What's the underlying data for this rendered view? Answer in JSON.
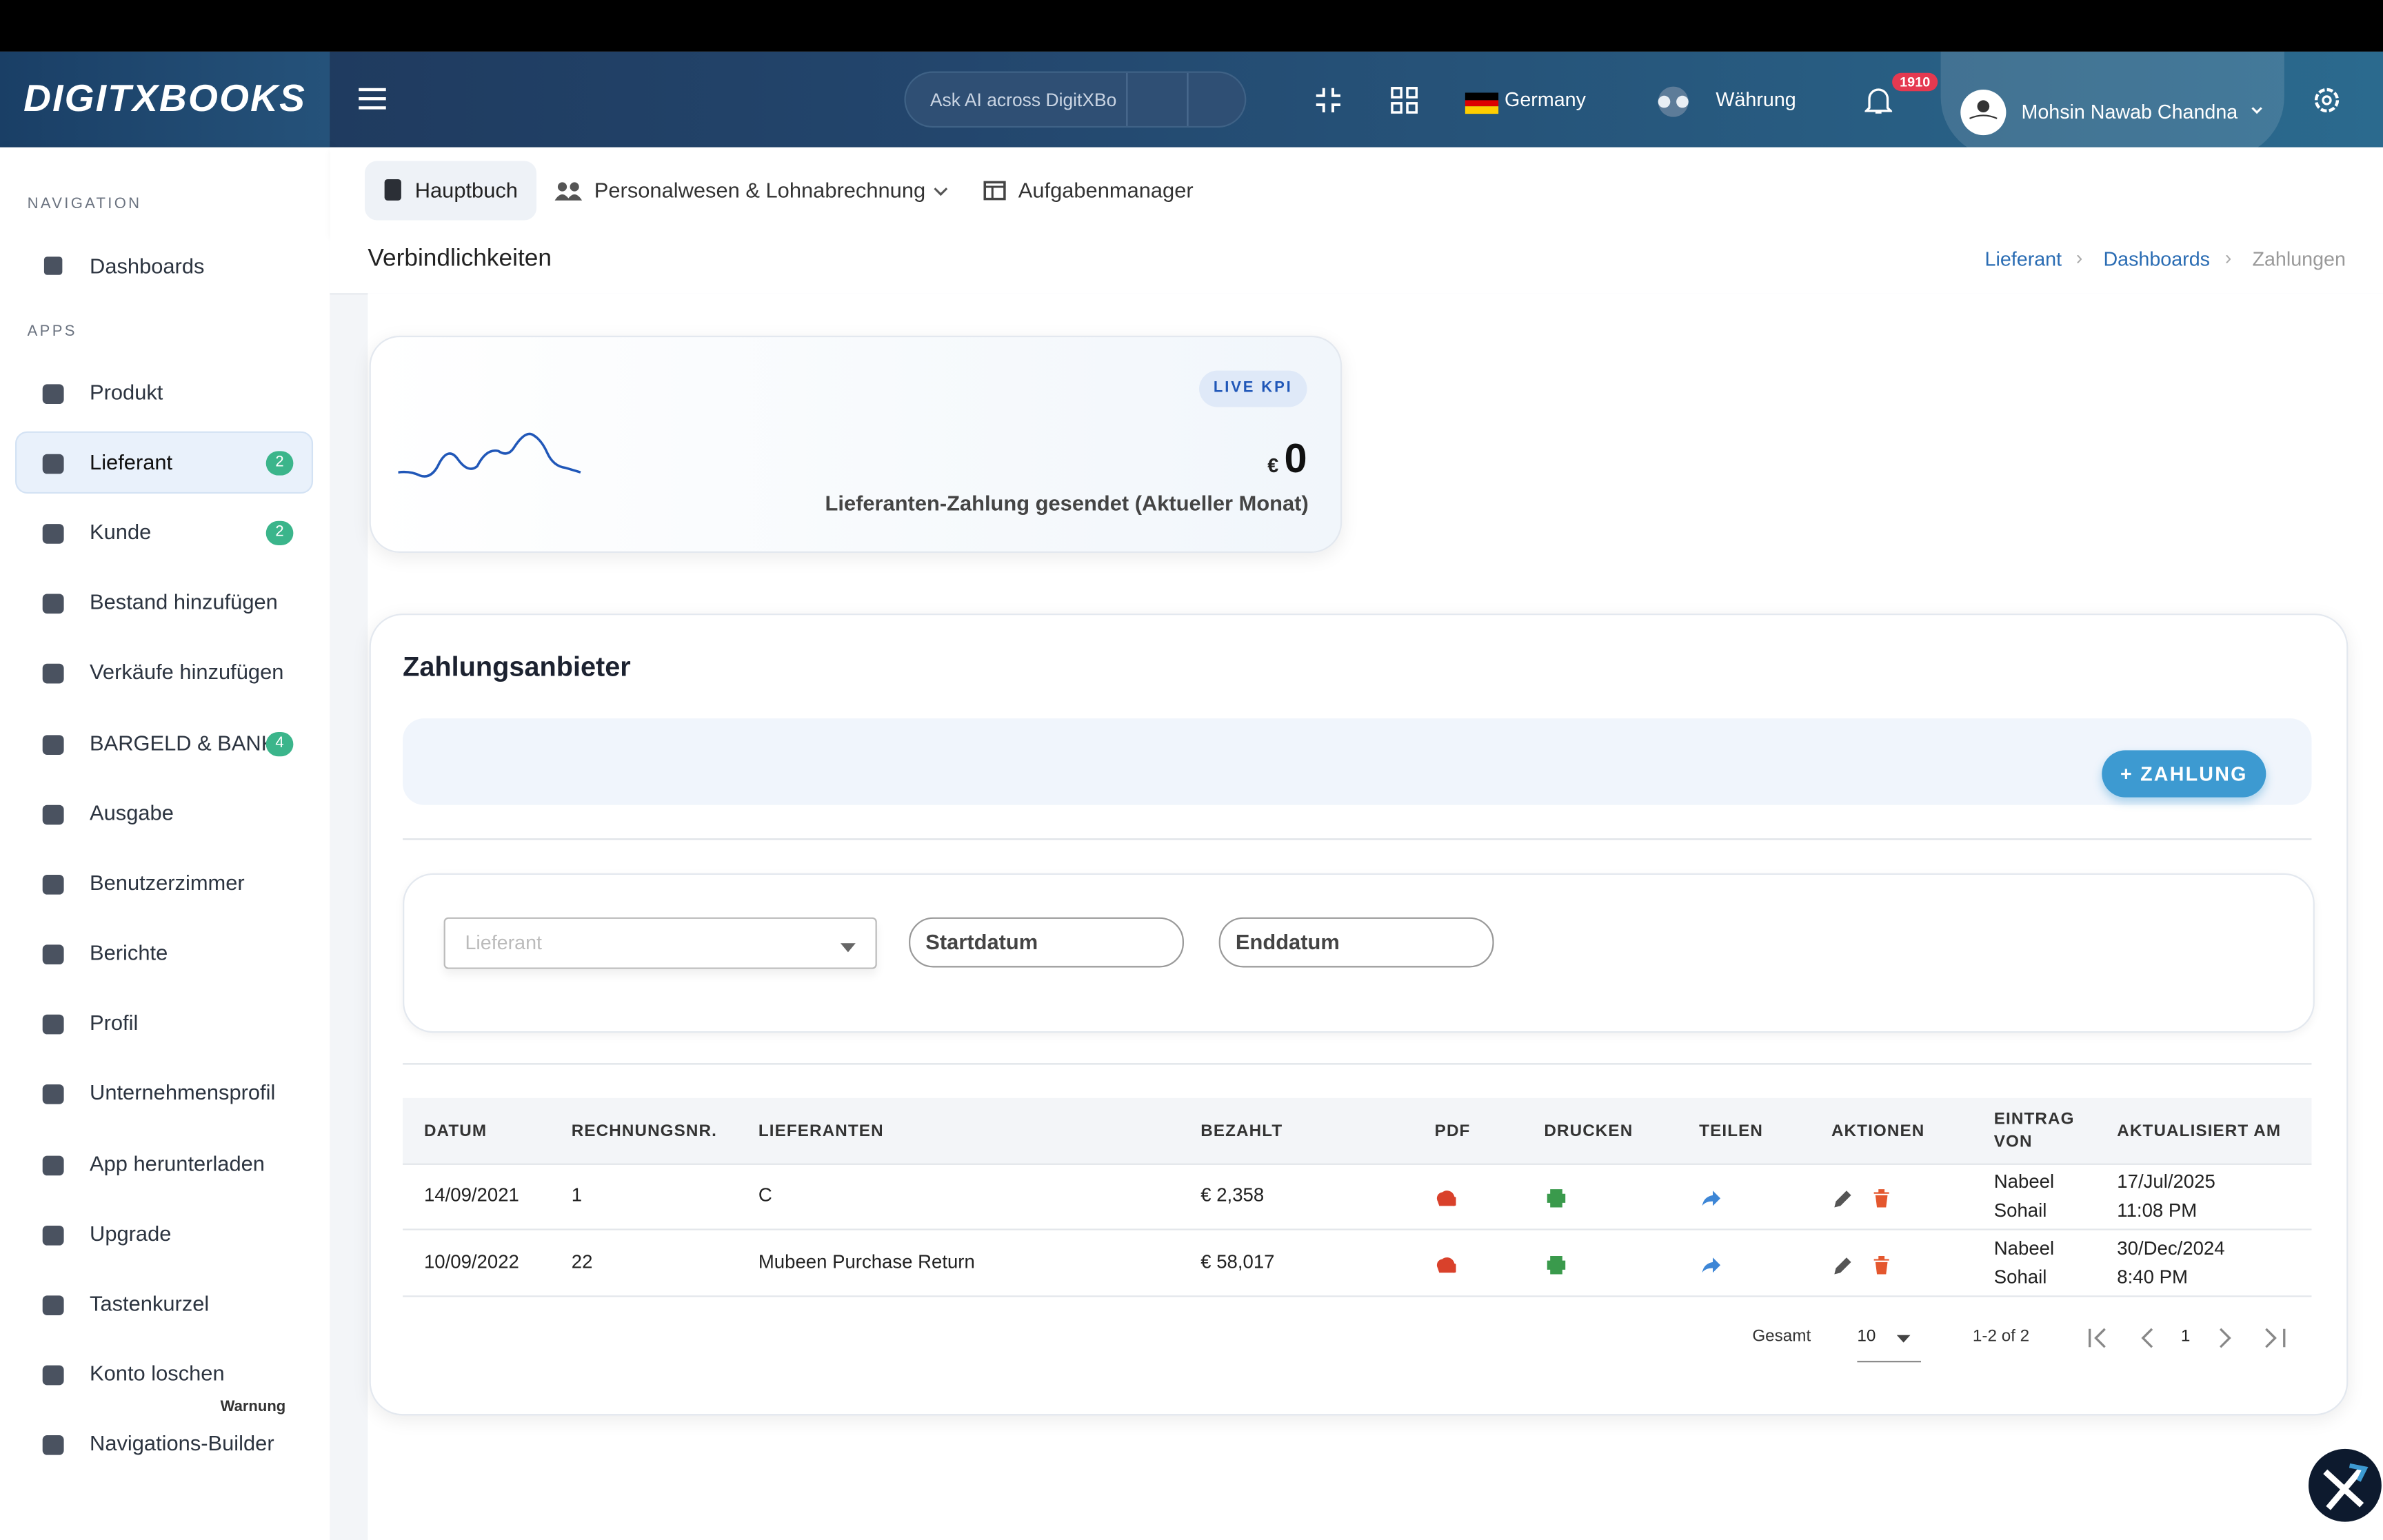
{
  "header": {
    "logo": "DIGITXBOOKS",
    "search_placeholder": "Ask AI across DigitXBo",
    "country": "Germany",
    "currency": "Währung",
    "notifications": "1910",
    "user": "Mohsin Nawab Chandna"
  },
  "sidebar": {
    "nav_heading": "NAVIGATION",
    "nav_items": [
      {
        "label": "Dashboards"
      }
    ],
    "apps_heading": "APPS",
    "apps_items": [
      {
        "label": "Produkt"
      },
      {
        "label": "Lieferant",
        "badge": "2"
      },
      {
        "label": "Kunde",
        "badge": "2"
      },
      {
        "label": "Bestand hinzufügen"
      },
      {
        "label": "Verkäufe hinzufügen"
      },
      {
        "label": "BARGELD & BANK",
        "badge": "4"
      },
      {
        "label": "Ausgabe"
      },
      {
        "label": "Benutzerzimmer"
      },
      {
        "label": "Berichte"
      },
      {
        "label": "Profil"
      },
      {
        "label": "Unternehmensprofil"
      },
      {
        "label": "App herunterladen"
      },
      {
        "label": "Upgrade"
      },
      {
        "label": "Tastenkurzel"
      },
      {
        "label": "Konto loschen",
        "note": "Warnung"
      },
      {
        "label": "Navigations-Builder"
      }
    ]
  },
  "tabs": [
    "Hauptbuch",
    "Personalwesen & Lohnabrechnung",
    "Aufgabenmanager"
  ],
  "page_title": "Verbindlichkeiten",
  "breadcrumb": [
    "Lieferant",
    "Dashboards",
    "Zahlungen"
  ],
  "kpi": {
    "badge": "LIVE KPI",
    "currency": "€",
    "value": "0",
    "label": "Lieferanten-Zahlung gesendet (Aktueller Monat)"
  },
  "panel": {
    "title": "Zahlungsanbieter",
    "add_button": "+ ZAHLUNG",
    "filters": {
      "supplier": "Lieferant",
      "start": "Startdatum",
      "end": "Enddatum"
    }
  },
  "table": {
    "columns": [
      "DATUM",
      "RECHNUNGSNR.",
      "LIEFERANTEN",
      "BEZAHLT",
      "PDF",
      "DRUCKEN",
      "TEILEN",
      "AKTIONEN",
      "EINTRAG VON",
      "AKTUALISIERT AM"
    ],
    "rows": [
      {
        "date": "14/09/2021",
        "invoice": "1",
        "supplier": "C",
        "paid": "€ 2,358",
        "created_by": "Nabeel Sohail",
        "updated": "17/Jul/2025 11:08 PM"
      },
      {
        "date": "10/09/2022",
        "invoice": "22",
        "supplier": "Mubeen Purchase Return",
        "paid": "€ 58,017",
        "created_by": "Nabeel Sohail",
        "updated": "30/Dec/2024 8:40 PM"
      }
    ]
  },
  "pagination": {
    "total_label": "Gesamt",
    "page_size": "10",
    "range": "1-2 of 2",
    "page": "1"
  }
}
